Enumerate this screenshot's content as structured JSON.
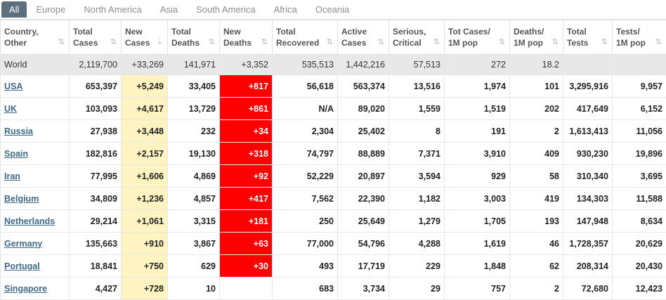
{
  "tabs": [
    "All",
    "Europe",
    "North America",
    "Asia",
    "South America",
    "Africa",
    "Oceania"
  ],
  "columns": [
    [
      "Country,",
      "Other"
    ],
    [
      "Total",
      "Cases"
    ],
    [
      "New",
      "Cases"
    ],
    [
      "Total",
      "Deaths"
    ],
    [
      "New",
      "Deaths"
    ],
    [
      "Total",
      "Recovered"
    ],
    [
      "Active",
      "Cases"
    ],
    [
      "Serious,",
      "Critical"
    ],
    [
      "Tot Cases/",
      "1M pop"
    ],
    [
      "Deaths/",
      "1M pop"
    ],
    [
      "Total",
      "Tests"
    ],
    [
      "Tests/",
      "1M pop"
    ]
  ],
  "sort_icons": [
    "⇅",
    "⇅",
    "⇣",
    "⇅",
    "⇅",
    "⇅",
    "⇅",
    "⇅",
    "⇅",
    "⇅",
    "⇅",
    "⇅"
  ],
  "world": [
    "World",
    "2,119,700",
    "+33,269",
    "141,971",
    "+3,352",
    "535,513",
    "1,442,216",
    "57,513",
    "272",
    "18.2",
    "",
    ""
  ],
  "rows": [
    [
      "USA",
      "653,397",
      "+5,249",
      "33,405",
      "+817",
      "56,618",
      "563,374",
      "13,516",
      "1,974",
      "101",
      "3,295,916",
      "9,957"
    ],
    [
      "UK",
      "103,093",
      "+4,617",
      "13,729",
      "+861",
      "N/A",
      "89,020",
      "1,559",
      "1,519",
      "202",
      "417,649",
      "6,152"
    ],
    [
      "Russia",
      "27,938",
      "+3,448",
      "232",
      "+34",
      "2,304",
      "25,402",
      "8",
      "191",
      "2",
      "1,613,413",
      "11,056"
    ],
    [
      "Spain",
      "182,816",
      "+2,157",
      "19,130",
      "+318",
      "74,797",
      "88,889",
      "7,371",
      "3,910",
      "409",
      "930,230",
      "19,896"
    ],
    [
      "Iran",
      "77,995",
      "+1,606",
      "4,869",
      "+92",
      "52,229",
      "20,897",
      "3,594",
      "929",
      "58",
      "310,340",
      "3,695"
    ],
    [
      "Belgium",
      "34,809",
      "+1,236",
      "4,857",
      "+417",
      "7,562",
      "22,390",
      "1,182",
      "3,003",
      "419",
      "134,303",
      "11,588"
    ],
    [
      "Netherlands",
      "29,214",
      "+1,061",
      "3,315",
      "+181",
      "250",
      "25,649",
      "1,279",
      "1,705",
      "193",
      "147,948",
      "8,634"
    ],
    [
      "Germany",
      "135,663",
      "+910",
      "3,867",
      "+63",
      "77,000",
      "54,796",
      "4,288",
      "1,619",
      "46",
      "1,728,357",
      "20,629"
    ],
    [
      "Portugal",
      "18,841",
      "+750",
      "629",
      "+30",
      "493",
      "17,719",
      "229",
      "1,848",
      "62",
      "208,314",
      "20,430"
    ],
    [
      "Singapore",
      "4,427",
      "+728",
      "10",
      "",
      "683",
      "3,734",
      "29",
      "757",
      "2",
      "72,680",
      "12,423"
    ]
  ],
  "colors": {
    "new_cases_bg": "#fff3c2",
    "new_deaths_bg": "#ff0000",
    "tab_active_bg": "#5c6f7e",
    "link": "#3e6a8c"
  }
}
